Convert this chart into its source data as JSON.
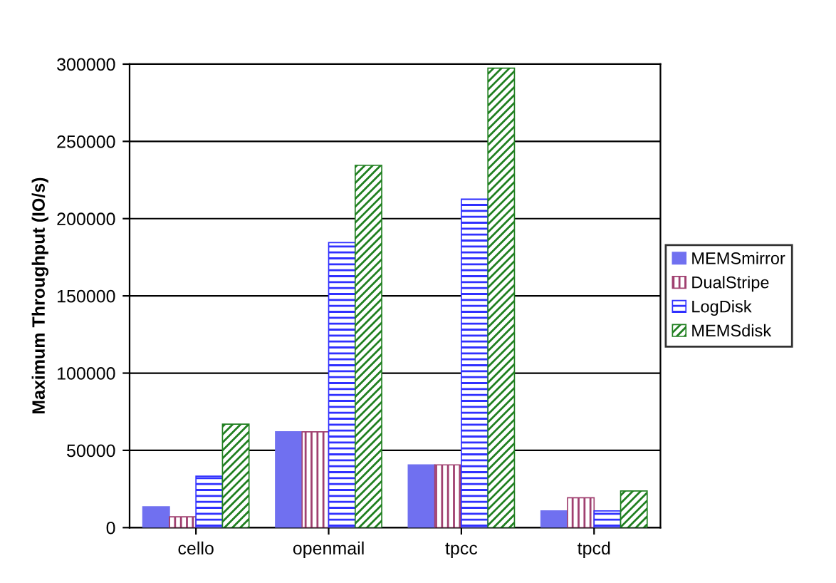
{
  "chart_data": {
    "type": "bar",
    "ylabel": "Maximum Throughput (IO/s)",
    "categories": [
      "cello",
      "openmail",
      "tpcc",
      "tpcd"
    ],
    "series": [
      {
        "name": "MEMSmirror",
        "color": "#7070f0",
        "values": [
          13500,
          62000,
          40600,
          10800
        ]
      },
      {
        "name": "DualStripe",
        "color": "#a04070",
        "values": [
          7000,
          62000,
          40600,
          19300
        ]
      },
      {
        "name": "LogDisk",
        "color": "#3030ff",
        "values": [
          33300,
          184500,
          212600,
          10800
        ]
      },
      {
        "name": "MEMSdisk",
        "color": "#208020",
        "values": [
          67000,
          234500,
          297400,
          23700
        ]
      }
    ],
    "ylim": [
      0,
      300000
    ],
    "yticks": [
      0,
      50000,
      100000,
      150000,
      200000,
      250000,
      300000
    ],
    "grid": "y",
    "legend": "right"
  }
}
